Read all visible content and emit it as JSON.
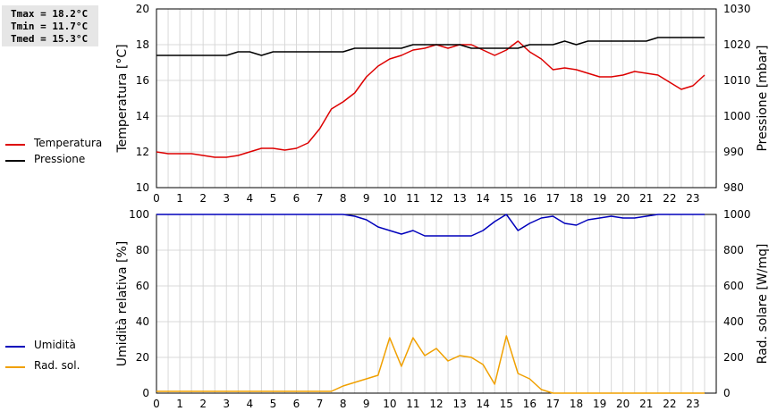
{
  "stats": {
    "tmax": "Tmax = 18.2°C",
    "tmin": "Tmin = 11.7°C",
    "tmed": "Tmed = 15.3°C"
  },
  "legend_top": [
    {
      "label": "Temperatura",
      "color": "#dd0000"
    },
    {
      "label": "Pressione",
      "color": "#000000"
    }
  ],
  "legend_bottom": [
    {
      "label": "Umidità",
      "color": "#0000bb"
    },
    {
      "label": "Rad. sol.",
      "color": "#f0a000"
    }
  ],
  "chart_data": [
    {
      "type": "line",
      "ylabel": "Temperatura [°C]",
      "y2label": "Pressione [mbar]",
      "xlim": [
        0,
        24
      ],
      "xticks": [
        0,
        1,
        2,
        3,
        4,
        5,
        6,
        7,
        8,
        9,
        10,
        11,
        12,
        13,
        14,
        15,
        16,
        17,
        18,
        19,
        20,
        21,
        22,
        23
      ],
      "ylim": [
        10,
        20
      ],
      "yticks": [
        10,
        12,
        14,
        16,
        18,
        20
      ],
      "y2lim": [
        980,
        1030
      ],
      "y2ticks": [
        980,
        990,
        1000,
        1010,
        1020,
        1030
      ],
      "grid": true,
      "series": [
        {
          "name": "Temperatura",
          "axis": "left",
          "color": "#dd0000",
          "x": [
            0,
            0.5,
            1,
            1.5,
            2,
            2.5,
            3,
            3.5,
            4,
            4.5,
            5,
            5.5,
            6,
            6.5,
            7,
            7.5,
            8,
            8.5,
            9,
            9.5,
            10,
            10.5,
            11,
            11.5,
            12,
            12.5,
            13,
            13.5,
            14,
            14.5,
            15,
            15.5,
            16,
            16.5,
            17,
            17.5,
            18,
            18.5,
            19,
            19.5,
            20,
            20.5,
            21,
            21.5,
            22,
            22.5,
            23,
            23.5
          ],
          "values": [
            12.0,
            11.9,
            11.9,
            11.9,
            11.8,
            11.7,
            11.7,
            11.8,
            12.0,
            12.2,
            12.2,
            12.1,
            12.2,
            12.5,
            13.3,
            14.4,
            14.8,
            15.3,
            16.2,
            16.8,
            17.2,
            17.4,
            17.7,
            17.8,
            18.0,
            17.8,
            18.0,
            18.0,
            17.7,
            17.4,
            17.7,
            18.2,
            17.6,
            17.2,
            16.6,
            16.7,
            16.6,
            16.4,
            16.2,
            16.2,
            16.3,
            16.5,
            16.4,
            16.3,
            15.9,
            15.5,
            15.7,
            16.3
          ]
        },
        {
          "name": "Pressione",
          "axis": "right",
          "color": "#000000",
          "x": [
            0,
            0.5,
            1,
            1.5,
            2,
            2.5,
            3,
            3.5,
            4,
            4.5,
            5,
            5.5,
            6,
            6.5,
            7,
            7.5,
            8,
            8.5,
            9,
            9.5,
            10,
            10.5,
            11,
            11.5,
            12,
            12.5,
            13,
            13.5,
            14,
            14.5,
            15,
            15.5,
            16,
            16.5,
            17,
            17.5,
            18,
            18.5,
            19,
            19.5,
            20,
            20.5,
            21,
            21.5,
            22,
            22.5,
            23,
            23.5
          ],
          "values": [
            1017,
            1017,
            1017,
            1017,
            1017,
            1017,
            1017,
            1018,
            1018,
            1017,
            1018,
            1018,
            1018,
            1018,
            1018,
            1018,
            1018,
            1019,
            1019,
            1019,
            1019,
            1019,
            1020,
            1020,
            1020,
            1020,
            1020,
            1019,
            1019,
            1019,
            1019,
            1019,
            1020,
            1020,
            1020,
            1021,
            1020,
            1021,
            1021,
            1021,
            1021,
            1021,
            1021,
            1022,
            1022,
            1022,
            1022,
            1022
          ]
        }
      ]
    },
    {
      "type": "line",
      "ylabel": "Umidità relativa [%]",
      "y2label": "Rad. solare [W/mq]",
      "xlim": [
        0,
        24
      ],
      "xticks": [
        0,
        1,
        2,
        3,
        4,
        5,
        6,
        7,
        8,
        9,
        10,
        11,
        12,
        13,
        14,
        15,
        16,
        17,
        18,
        19,
        20,
        21,
        22,
        23
      ],
      "ylim": [
        0,
        100
      ],
      "yticks": [
        0,
        20,
        40,
        60,
        80,
        100
      ],
      "y2lim": [
        0,
        1000
      ],
      "y2ticks": [
        0,
        200,
        400,
        600,
        800,
        1000
      ],
      "grid": true,
      "series": [
        {
          "name": "Umidità",
          "axis": "left",
          "color": "#0000bb",
          "x": [
            0,
            0.5,
            1,
            1.5,
            2,
            2.5,
            3,
            3.5,
            4,
            4.5,
            5,
            5.5,
            6,
            6.5,
            7,
            7.5,
            8,
            8.5,
            9,
            9.5,
            10,
            10.5,
            11,
            11.5,
            12,
            12.5,
            13,
            13.5,
            14,
            14.5,
            15,
            15.5,
            16,
            16.5,
            17,
            17.5,
            18,
            18.5,
            19,
            19.5,
            20,
            20.5,
            21,
            21.5,
            22,
            22.5,
            23,
            23.5
          ],
          "values": [
            100,
            100,
            100,
            100,
            100,
            100,
            100,
            100,
            100,
            100,
            100,
            100,
            100,
            100,
            100,
            100,
            100,
            99,
            97,
            93,
            91,
            89,
            91,
            88,
            88,
            88,
            88,
            88,
            91,
            96,
            100,
            91,
            95,
            98,
            99,
            95,
            94,
            97,
            98,
            99,
            98,
            98,
            99,
            100,
            100,
            100,
            100,
            100
          ]
        },
        {
          "name": "Rad. sol.",
          "axis": "right",
          "color": "#f0a000",
          "x": [
            0,
            0.5,
            1,
            1.5,
            2,
            2.5,
            3,
            3.5,
            4,
            4.5,
            5,
            5.5,
            6,
            6.5,
            7,
            7.5,
            8,
            8.5,
            9,
            9.5,
            10,
            10.5,
            11,
            11.5,
            12,
            12.5,
            13,
            13.5,
            14,
            14.5,
            15,
            15.5,
            16,
            16.5,
            17,
            17.5,
            18,
            18.5,
            19,
            19.5,
            20,
            20.5,
            21,
            21.5,
            22,
            22.5,
            23,
            23.5
          ],
          "values": [
            10,
            10,
            10,
            10,
            10,
            10,
            10,
            10,
            10,
            10,
            10,
            10,
            10,
            10,
            10,
            10,
            40,
            60,
            80,
            100,
            310,
            150,
            310,
            210,
            250,
            180,
            210,
            200,
            160,
            50,
            320,
            110,
            80,
            20,
            0,
            0,
            0,
            0,
            0,
            0,
            0,
            0,
            0,
            0,
            0,
            0,
            0,
            0
          ]
        }
      ]
    }
  ]
}
